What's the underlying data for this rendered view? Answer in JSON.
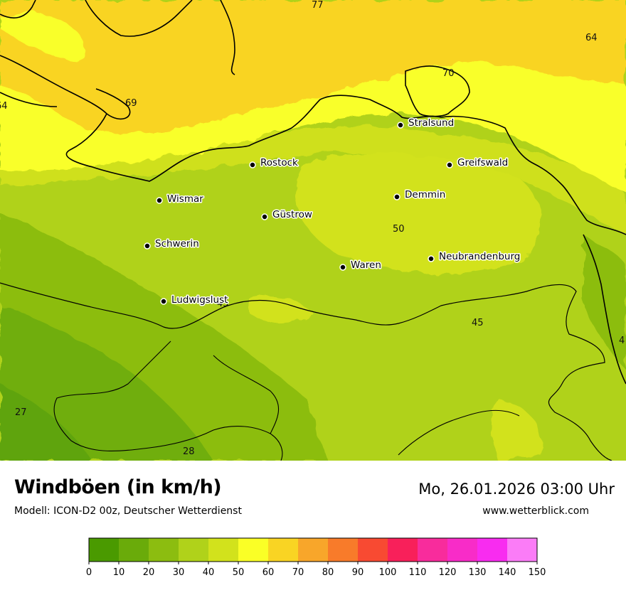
{
  "title": "Windböen (in km/h)",
  "subtitle": "Modell: ICON-D2 00z, Deutscher Wetterdienst",
  "datetime": "Mo, 26.01.2026 03:00 Uhr",
  "website": "www.wetterblick.com",
  "colors": {
    "land_27": "#4e9a06",
    "land_30": "#7ab20e",
    "land_40": "#b2d41a",
    "land_45": "#c5dd1c",
    "land_50": "#d4e51f",
    "sea_55": "#f9ff2a",
    "sea_65": "#f9d423",
    "border": "#000000"
  },
  "cities": [
    {
      "name": "Stralsund"
    },
    {
      "name": "Rostock"
    },
    {
      "name": "Greifswald"
    },
    {
      "name": "Wismar"
    },
    {
      "name": "Demmin"
    },
    {
      "name": "Güstrow"
    },
    {
      "name": "Schwerin"
    },
    {
      "name": "Neubrandenburg"
    },
    {
      "name": "Waren"
    },
    {
      "name": "Ludwigslust"
    }
  ],
  "value_labels": [
    "77",
    "64",
    "69",
    "64",
    "70",
    "50",
    "45",
    "45",
    "27",
    "28",
    "4"
  ],
  "legend": {
    "ticks": [
      "0",
      "10",
      "20",
      "30",
      "40",
      "50",
      "60",
      "70",
      "80",
      "90",
      "100",
      "110",
      "120",
      "130",
      "140",
      "150"
    ],
    "colors": [
      "#4a9a00",
      "#6aab0a",
      "#8cbd10",
      "#b0d21a",
      "#d2e21c",
      "#faff26",
      "#f9d423",
      "#f8a62a",
      "#f87b2a",
      "#f84a32",
      "#f8205a",
      "#f82c9c",
      "#f82cc8",
      "#f82cf0",
      "#fb7cf7"
    ]
  }
}
